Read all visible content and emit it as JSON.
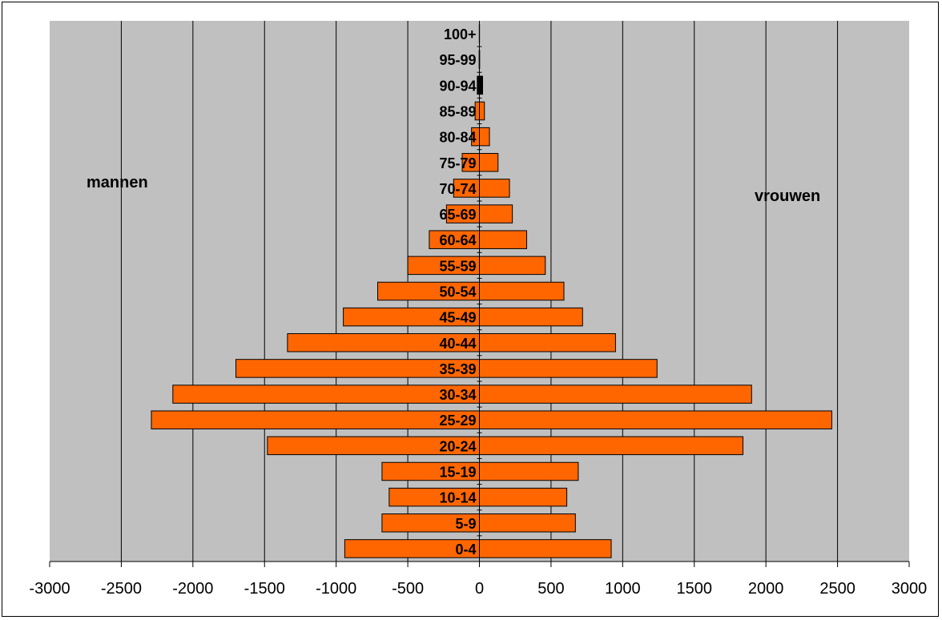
{
  "chart_data": {
    "type": "bar",
    "orientation": "horizontal",
    "categories": [
      "0-4",
      "5-9",
      "10-14",
      "15-19",
      "20-24",
      "25-29",
      "30-34",
      "35-39",
      "40-44",
      "45-49",
      "50-54",
      "55-59",
      "60-64",
      "65-69",
      "70-74",
      "75-79",
      "80-84",
      "85-89",
      "90-94",
      "95-99",
      "100+"
    ],
    "series": [
      {
        "name": "mannen",
        "values": [
          -940,
          -680,
          -630,
          -680,
          -1480,
          -2290,
          -2140,
          -1700,
          -1340,
          -950,
          -710,
          -500,
          -350,
          -230,
          -180,
          -120,
          -55,
          -30,
          -15,
          -2,
          -1
        ]
      },
      {
        "name": "vrouwen",
        "values": [
          920,
          670,
          610,
          690,
          1840,
          2460,
          1900,
          1240,
          950,
          720,
          590,
          460,
          330,
          230,
          210,
          130,
          70,
          35,
          8,
          2,
          1
        ]
      }
    ],
    "xlim": [
      -3000,
      3000
    ],
    "x_ticks": [
      "-3000",
      "-2500",
      "-2000",
      "-1500",
      "-1000",
      "-500",
      "0",
      "500",
      "1000",
      "1500",
      "2000",
      "2500",
      "3000"
    ],
    "bar_color": "#ff6600",
    "bar_color_90_94": "#000000",
    "plot_background": "#c0c0c0",
    "grid": true,
    "annotations": {
      "left": "mannen",
      "right": "vrouwen"
    }
  }
}
